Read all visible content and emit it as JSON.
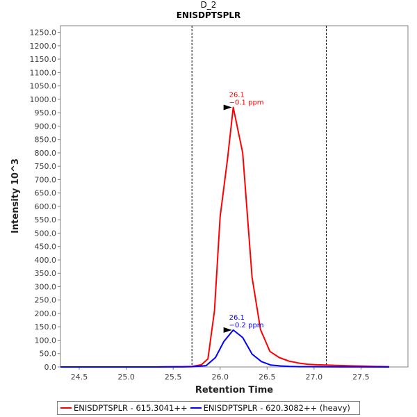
{
  "chart_data": {
    "type": "line",
    "title": "D_2",
    "subtitle": "ENISDPTSPLR",
    "xlabel": "Retention Time",
    "ylabel": "Intensity 10^3",
    "xlim": [
      24.3,
      28.0
    ],
    "ylim": [
      0,
      1275
    ],
    "x_ticks": [
      "24.5",
      "25.0",
      "25.5",
      "26.0",
      "26.5",
      "27.0",
      "27.5"
    ],
    "y_ticks": [
      "0.0",
      "50.0",
      "100.0",
      "150.0",
      "200.0",
      "250.0",
      "300.0",
      "350.0",
      "400.0",
      "450.0",
      "500.0",
      "550.0",
      "600.0",
      "650.0",
      "700.0",
      "750.0",
      "800.0",
      "850.0",
      "900.0",
      "950.0",
      "1000.0",
      "1050.0",
      "1100.0",
      "1150.0",
      "1200.0",
      "1250.0"
    ],
    "integration_bounds": [
      25.7,
      27.13
    ],
    "series": [
      {
        "name": "ENISDPTSPLR - 615.3041++",
        "color": "#ff0000",
        "points": [
          [
            24.3,
            0
          ],
          [
            24.5,
            0
          ],
          [
            24.7,
            0
          ],
          [
            24.9,
            0
          ],
          [
            25.1,
            0
          ],
          [
            25.3,
            0
          ],
          [
            25.45,
            0.5
          ],
          [
            25.6,
            1
          ],
          [
            25.7,
            2
          ],
          [
            25.8,
            8
          ],
          [
            25.87,
            30
          ],
          [
            25.94,
            210
          ],
          [
            26.0,
            560
          ],
          [
            26.08,
            780
          ],
          [
            26.14,
            970
          ],
          [
            26.24,
            800
          ],
          [
            26.34,
            335
          ],
          [
            26.43,
            140
          ],
          [
            26.53,
            58
          ],
          [
            26.63,
            35
          ],
          [
            26.73,
            22
          ],
          [
            26.83,
            15
          ],
          [
            26.93,
            10
          ],
          [
            27.03,
            8
          ],
          [
            27.13,
            7
          ],
          [
            27.23,
            6
          ],
          [
            27.33,
            5
          ],
          [
            27.43,
            4
          ],
          [
            27.53,
            3
          ],
          [
            27.65,
            2
          ],
          [
            27.8,
            1
          ]
        ]
      },
      {
        "name": "ENISDPTSPLR - 620.3082++ (heavy)",
        "color": "#0000ff",
        "points": [
          [
            24.3,
            0
          ],
          [
            24.5,
            0
          ],
          [
            24.7,
            0
          ],
          [
            24.9,
            0
          ],
          [
            25.1,
            0
          ],
          [
            25.3,
            0
          ],
          [
            25.45,
            0.2
          ],
          [
            25.6,
            0.3
          ],
          [
            25.7,
            1
          ],
          [
            25.85,
            5
          ],
          [
            25.95,
            35
          ],
          [
            26.04,
            95
          ],
          [
            26.14,
            138
          ],
          [
            26.24,
            110
          ],
          [
            26.34,
            48
          ],
          [
            26.44,
            20
          ],
          [
            26.54,
            7
          ],
          [
            26.64,
            4
          ],
          [
            26.74,
            2
          ],
          [
            26.84,
            1
          ],
          [
            26.94,
            1
          ],
          [
            27.1,
            0.5
          ],
          [
            27.3,
            0.3
          ],
          [
            27.5,
            0.2
          ],
          [
            27.8,
            0
          ]
        ]
      }
    ],
    "annotations": [
      {
        "series": 0,
        "x": 26.14,
        "y": 970,
        "line1": "26.1",
        "line2": "−0.1 ppm"
      },
      {
        "series": 1,
        "x": 26.14,
        "y": 138,
        "line1": "26.1",
        "line2": "−0.2 ppm"
      }
    ],
    "legend_position": "bottom"
  }
}
